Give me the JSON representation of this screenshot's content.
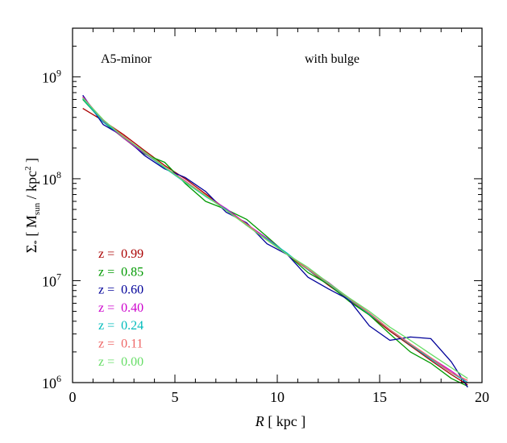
{
  "chart_data": {
    "type": "line",
    "xlabel_italic": "R",
    "xlabel_rest": " [ kpc ]",
    "ylabel": {
      "sigma": "Σ",
      "sub_star": "*",
      "open": "  [ M",
      "sub_sun": "sun",
      "mid": " / kpc",
      "sup_2": "2",
      "close": " ]"
    },
    "annotations": {
      "left": "A5-minor",
      "right": "with bulge"
    },
    "xlim": [
      0,
      20
    ],
    "ylim": [
      1000000,
      3000000000
    ],
    "ylog": true,
    "x_ticks": [
      {
        "value": 0,
        "label": "0"
      },
      {
        "value": 5,
        "label": "5"
      },
      {
        "value": 10,
        "label": "10"
      },
      {
        "value": 15,
        "label": "15"
      },
      {
        "value": 20,
        "label": "20"
      }
    ],
    "y_ticks": [
      {
        "value": 1000000,
        "base": "10",
        "exp": "6"
      },
      {
        "value": 10000000,
        "base": "10",
        "exp": "7"
      },
      {
        "value": 100000000,
        "base": "10",
        "exp": "8"
      },
      {
        "value": 1000000000,
        "base": "10",
        "exp": "9"
      }
    ],
    "legend_position": "lower-left",
    "series": [
      {
        "name": "z =  0.99",
        "color": "#aa0000",
        "x": [
          0.5,
          1.5,
          2.5,
          3.5,
          4.5,
          5.5,
          6.5,
          7.5,
          8.5,
          9.5,
          10.5,
          11.5,
          12.5,
          13.5,
          14.5,
          15.5,
          16.5,
          17.5,
          18.5,
          19.3
        ],
        "y": [
          490000000.0,
          370000000.0,
          270000000.0,
          190000000.0,
          135000000.0,
          100000000.0,
          71000000.0,
          50000000.0,
          35000000.0,
          25000000.0,
          18000000.0,
          12800000.0,
          9000000.0,
          6500000.0,
          4600000.0,
          3200000.0,
          2300000.0,
          1650000.0,
          1200000.0,
          950000.0
        ]
      },
      {
        "name": "z =  0.85",
        "color": "#009900",
        "x": [
          0.5,
          1.5,
          2.5,
          3.5,
          4.5,
          5.5,
          6.5,
          7.5,
          8.5,
          9.5,
          10.5,
          11.5,
          12.5,
          13.5,
          14.5,
          15.5,
          16.5,
          17.5,
          18.5,
          19.3
        ],
        "y": [
          600000000.0,
          360000000.0,
          250000000.0,
          175000000.0,
          145000000.0,
          90000000.0,
          60000000.0,
          50000000.0,
          40000000.0,
          27000000.0,
          18000000.0,
          12000000.0,
          9200000.0,
          6300000.0,
          4600000.0,
          3000000.0,
          2000000.0,
          1550000.0,
          1100000.0,
          920000.0
        ]
      },
      {
        "name": "z =  0.60",
        "color": "#000099",
        "x": [
          0.5,
          1.5,
          2.5,
          3.5,
          4.5,
          5.5,
          6.5,
          7.5,
          8.5,
          9.5,
          10.5,
          11.5,
          12.5,
          13.5,
          14.5,
          15.5,
          16.5,
          17.5,
          18.5,
          19.3
        ],
        "y": [
          660000000.0,
          340000000.0,
          260000000.0,
          170000000.0,
          125000000.0,
          103000000.0,
          75000000.0,
          47000000.0,
          37000000.0,
          23000000.0,
          18000000.0,
          10800000.0,
          8300000.0,
          6500000.0,
          3600000.0,
          2600000.0,
          2800000.0,
          2700000.0,
          1600000.0,
          900000.0
        ]
      },
      {
        "name": "z =  0.40",
        "color": "#cc00cc",
        "x": [
          0.5,
          1.5,
          2.5,
          3.5,
          4.5,
          5.5,
          6.5,
          7.5,
          8.5,
          9.5,
          10.5,
          11.5,
          12.5,
          13.5,
          14.5,
          15.5,
          16.5,
          17.5,
          18.5,
          19.3
        ],
        "y": [
          640000000.0,
          370000000.0,
          250000000.0,
          178000000.0,
          130000000.0,
          95000000.0,
          68000000.0,
          51000000.0,
          36000000.0,
          26000000.0,
          18200000.0,
          13000000.0,
          9600000.0,
          6700000.0,
          4800000.0,
          3300000.0,
          2400000.0,
          1750000.0,
          1300000.0,
          1000000.0
        ]
      },
      {
        "name": "z =  0.24",
        "color": "#00bbbb",
        "x": [
          0.5,
          1.5,
          2.5,
          3.5,
          4.5,
          5.5,
          6.5,
          7.5,
          8.5,
          9.5,
          10.5,
          11.5,
          12.5,
          13.5,
          14.5,
          15.5,
          16.5,
          17.5,
          18.5,
          19.3
        ],
        "y": [
          610000000.0,
          360000000.0,
          260000000.0,
          180000000.0,
          128000000.0,
          92000000.0,
          67000000.0,
          50000000.0,
          35000000.0,
          25500000.0,
          18500000.0,
          12800000.0,
          9300000.0,
          6600000.0,
          4700000.0,
          3300000.0,
          2350000.0,
          1700000.0,
          1250000.0,
          1000000.0
        ]
      },
      {
        "name": "z =  0.11",
        "color": "#ee6666",
        "x": [
          0.5,
          1.5,
          2.5,
          3.5,
          4.5,
          5.5,
          6.5,
          7.5,
          8.5,
          9.5,
          10.5,
          11.5,
          12.5,
          13.5,
          14.5,
          15.5,
          16.5,
          17.5,
          18.5,
          19.3
        ],
        "y": [
          630000000.0,
          375000000.0,
          260000000.0,
          182000000.0,
          130000000.0,
          94000000.0,
          69000000.0,
          49000000.0,
          36000000.0,
          25000000.0,
          18000000.0,
          13000000.0,
          9400000.0,
          6700000.0,
          4800000.0,
          3300000.0,
          2400000.0,
          1750000.0,
          1250000.0,
          1050000.0
        ]
      },
      {
        "name": "z =  0.00",
        "color": "#66dd66",
        "x": [
          0.5,
          1.5,
          2.5,
          3.5,
          4.5,
          5.5,
          6.5,
          7.5,
          8.5,
          9.5,
          10.5,
          11.5,
          12.5,
          13.5,
          14.5,
          15.5,
          16.5,
          17.5,
          18.5,
          19.3
        ],
        "y": [
          620000000.0,
          380000000.0,
          255000000.0,
          185000000.0,
          130000000.0,
          93000000.0,
          68000000.0,
          49000000.0,
          35000000.0,
          25000000.0,
          18000000.0,
          13500000.0,
          9500000.0,
          6800000.0,
          5000000.0,
          3500000.0,
          2600000.0,
          1900000.0,
          1400000.0,
          1100000.0
        ]
      }
    ]
  }
}
